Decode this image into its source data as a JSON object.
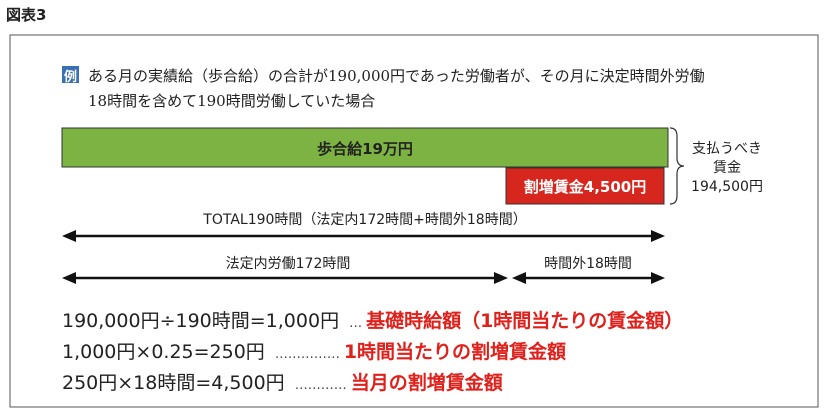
{
  "header": {
    "label": "図表3"
  },
  "example": {
    "icon": "例",
    "lines": [
      "ある月の実績給（歩合給）の合計が190,000円であった労働者が、その月に決定時間外労働",
      "18時間を含めて190時間労働していた場合"
    ]
  },
  "bars": {
    "base": "歩合給19万円",
    "premium": "割増賃金4,500円"
  },
  "payment": {
    "lines": [
      "支払うべき",
      "賃金",
      "194,500円"
    ]
  },
  "arrows": {
    "total": "TOTAL190時間（法定内172時間+時間外18時間）",
    "regular": "法定内労働172時間",
    "overtime": "時間外18時間"
  },
  "formulas": [
    {
      "expression": "190,000円÷190時間=1,000円",
      "leader": "…",
      "result": "基礎時給額（1時間当たりの賃金額）"
    },
    {
      "expression": "1,000円×0.25=250円",
      "leader": "……………",
      "result": "1時間当たりの割増賃金額"
    },
    {
      "expression": "250円×18時間=4,500円",
      "leader": "…………",
      "result": "当月の割増賃金額"
    }
  ]
}
